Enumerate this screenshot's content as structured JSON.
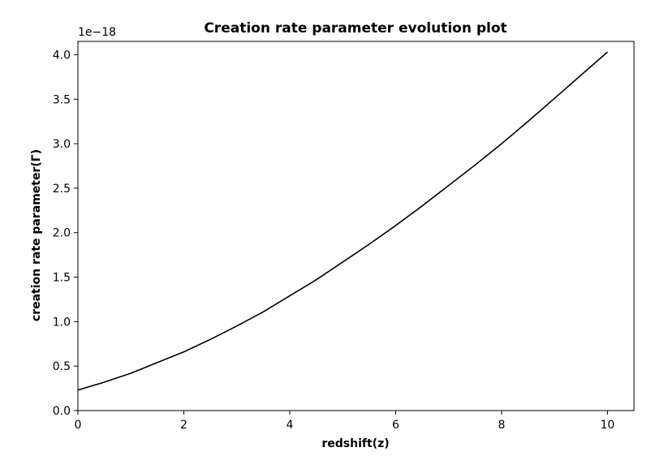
{
  "chart_data": {
    "type": "line",
    "title": "Creation rate parameter evolution plot",
    "xlabel": "redshift(z)",
    "ylabel": "creation rate parameter(Γ)",
    "y_offset_label": "1e−18",
    "xlim": [
      0,
      10.5
    ],
    "ylim": [
      0,
      4.15
    ],
    "x_ticks": [
      0,
      2,
      4,
      6,
      8,
      10
    ],
    "x_tick_labels": [
      "0",
      "2",
      "4",
      "6",
      "8",
      "10"
    ],
    "y_ticks": [
      0.0,
      0.5,
      1.0,
      1.5,
      2.0,
      2.5,
      3.0,
      3.5,
      4.0
    ],
    "y_tick_labels": [
      "0.0",
      "0.5",
      "1.0",
      "1.5",
      "2.0",
      "2.5",
      "3.0",
      "3.5",
      "4.0"
    ],
    "grid": false,
    "line_color": "#000000",
    "series": [
      {
        "x": [
          0,
          0.5,
          1,
          1.5,
          2,
          2.5,
          3,
          3.5,
          4,
          4.5,
          5,
          5.5,
          6,
          6.5,
          7,
          7.5,
          8,
          8.5,
          9,
          9.5,
          10
        ],
        "values": [
          0.23,
          0.32,
          0.42,
          0.54,
          0.66,
          0.8,
          0.95,
          1.11,
          1.29,
          1.47,
          1.67,
          1.87,
          2.08,
          2.3,
          2.53,
          2.76,
          3.0,
          3.25,
          3.51,
          3.77,
          4.03
        ]
      }
    ]
  }
}
